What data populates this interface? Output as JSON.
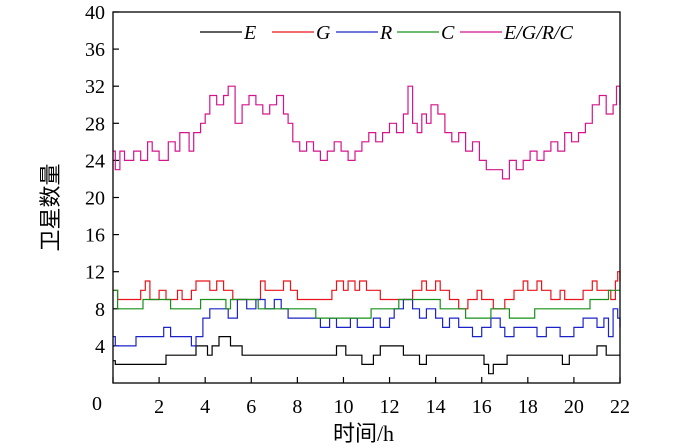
{
  "chart_data": {
    "type": "line",
    "title": "",
    "xlabel": "时间/h",
    "ylabel": "卫星数量",
    "xlim": [
      0,
      22
    ],
    "ylim": [
      0,
      40
    ],
    "xticks": [
      0,
      2,
      4,
      6,
      8,
      10,
      12,
      14,
      16,
      18,
      20,
      22
    ],
    "yticks": [
      4,
      8,
      12,
      16,
      20,
      24,
      28,
      32,
      36,
      40
    ],
    "y_zero_label": "0",
    "legend_position": "top",
    "series": [
      {
        "name": "E",
        "color": "#000000",
        "points": [
          [
            0,
            2.4
          ],
          [
            0.1,
            2
          ],
          [
            1,
            2
          ],
          [
            1.8,
            2
          ],
          [
            2.2,
            2
          ],
          [
            2.3,
            3
          ],
          [
            3,
            3
          ],
          [
            3.3,
            3
          ],
          [
            3.6,
            4
          ],
          [
            4,
            4
          ],
          [
            4.1,
            3
          ],
          [
            4.3,
            4
          ],
          [
            4.6,
            5
          ],
          [
            4.9,
            5
          ],
          [
            5.1,
            4
          ],
          [
            5.6,
            3
          ],
          [
            6,
            3
          ],
          [
            7,
            3
          ],
          [
            8,
            3
          ],
          [
            9,
            3
          ],
          [
            9.6,
            3
          ],
          [
            9.7,
            4
          ],
          [
            9.9,
            4
          ],
          [
            10.1,
            3
          ],
          [
            10.6,
            3
          ],
          [
            10.8,
            2
          ],
          [
            11,
            2
          ],
          [
            11.3,
            3
          ],
          [
            11.6,
            4
          ],
          [
            12.4,
            4
          ],
          [
            12.6,
            3
          ],
          [
            13.1,
            3
          ],
          [
            13.3,
            2
          ],
          [
            13.6,
            3
          ],
          [
            14,
            3
          ],
          [
            15,
            3
          ],
          [
            15.8,
            3
          ],
          [
            16,
            3
          ],
          [
            16.1,
            2
          ],
          [
            16.3,
            1
          ],
          [
            16.5,
            2
          ],
          [
            17,
            2
          ],
          [
            17.1,
            3
          ],
          [
            18,
            3
          ],
          [
            19.4,
            3
          ],
          [
            19.5,
            2
          ],
          [
            19.8,
            3
          ],
          [
            20,
            3
          ],
          [
            20.9,
            3
          ],
          [
            21,
            4
          ],
          [
            21.3,
            4
          ],
          [
            21.4,
            3
          ],
          [
            22,
            3
          ]
        ]
      },
      {
        "name": "G",
        "color": "#e8141b",
        "points": [
          [
            0,
            10
          ],
          [
            0.2,
            9
          ],
          [
            1,
            9
          ],
          [
            1.2,
            10
          ],
          [
            1.4,
            11
          ],
          [
            1.6,
            9
          ],
          [
            2,
            10
          ],
          [
            2.3,
            9
          ],
          [
            2.6,
            9
          ],
          [
            2.8,
            10
          ],
          [
            3,
            9
          ],
          [
            3.4,
            10
          ],
          [
            3.6,
            11
          ],
          [
            4,
            11
          ],
          [
            4.2,
            10
          ],
          [
            4.5,
            11
          ],
          [
            4.8,
            10
          ],
          [
            5.2,
            9
          ],
          [
            5.5,
            9
          ],
          [
            6,
            9
          ],
          [
            6.4,
            11
          ],
          [
            6.6,
            10
          ],
          [
            7,
            10
          ],
          [
            7.4,
            11
          ],
          [
            7.7,
            10
          ],
          [
            8,
            9
          ],
          [
            9,
            9
          ],
          [
            9.5,
            10
          ],
          [
            9.7,
            11
          ],
          [
            10,
            10
          ],
          [
            10.2,
            11
          ],
          [
            10.5,
            10
          ],
          [
            10.7,
            11
          ],
          [
            11,
            10
          ],
          [
            11.4,
            10
          ],
          [
            11.6,
            9
          ],
          [
            12,
            9
          ],
          [
            12.5,
            9
          ],
          [
            13,
            10
          ],
          [
            13.4,
            11
          ],
          [
            13.6,
            10
          ],
          [
            14,
            11
          ],
          [
            14.2,
            10
          ],
          [
            14.6,
            9
          ],
          [
            15,
            8
          ],
          [
            15.4,
            9
          ],
          [
            15.8,
            10
          ],
          [
            16,
            9
          ],
          [
            16.5,
            8
          ],
          [
            17,
            9
          ],
          [
            17.4,
            10
          ],
          [
            17.8,
            11
          ],
          [
            18,
            10
          ],
          [
            18.4,
            11
          ],
          [
            18.6,
            10
          ],
          [
            19,
            9
          ],
          [
            19.4,
            10
          ],
          [
            19.6,
            9
          ],
          [
            20,
            9
          ],
          [
            20.4,
            10
          ],
          [
            20.8,
            11
          ],
          [
            21,
            10
          ],
          [
            21.4,
            10
          ],
          [
            21.6,
            9
          ],
          [
            21.8,
            11
          ],
          [
            21.9,
            12
          ],
          [
            22,
            11
          ]
        ]
      },
      {
        "name": "R",
        "color": "#1c24c8",
        "points": [
          [
            0,
            5
          ],
          [
            0.1,
            4
          ],
          [
            0.8,
            4
          ],
          [
            1,
            5
          ],
          [
            2,
            5
          ],
          [
            2.2,
            6
          ],
          [
            2.5,
            5
          ],
          [
            3,
            5
          ],
          [
            3.4,
            4
          ],
          [
            3.6,
            5
          ],
          [
            3.9,
            7
          ],
          [
            4.2,
            8
          ],
          [
            4.6,
            8
          ],
          [
            5,
            7
          ],
          [
            5.4,
            9
          ],
          [
            5.8,
            8
          ],
          [
            6.2,
            9
          ],
          [
            6.6,
            8
          ],
          [
            7,
            9
          ],
          [
            7.3,
            8
          ],
          [
            7.6,
            7
          ],
          [
            8,
            7
          ],
          [
            8.6,
            7
          ],
          [
            9,
            6
          ],
          [
            9.4,
            7
          ],
          [
            9.7,
            6
          ],
          [
            10,
            6
          ],
          [
            10.3,
            7
          ],
          [
            10.6,
            6
          ],
          [
            11,
            6
          ],
          [
            11.3,
            7
          ],
          [
            11.6,
            6
          ],
          [
            12,
            7
          ],
          [
            12.2,
            8
          ],
          [
            12.6,
            9
          ],
          [
            13,
            8
          ],
          [
            13.3,
            7
          ],
          [
            13.6,
            8
          ],
          [
            14,
            7
          ],
          [
            14.3,
            6
          ],
          [
            14.6,
            7
          ],
          [
            15,
            6
          ],
          [
            15.4,
            6
          ],
          [
            15.6,
            5
          ],
          [
            16,
            6
          ],
          [
            16.4,
            7
          ],
          [
            16.8,
            6
          ],
          [
            17,
            5
          ],
          [
            17.4,
            6
          ],
          [
            18,
            6
          ],
          [
            18.4,
            5
          ],
          [
            18.8,
            6
          ],
          [
            19,
            6
          ],
          [
            19.4,
            5
          ],
          [
            20,
            6
          ],
          [
            20.4,
            7
          ],
          [
            20.8,
            7
          ],
          [
            21,
            6
          ],
          [
            21.3,
            7
          ],
          [
            21.5,
            5
          ],
          [
            21.7,
            8
          ],
          [
            21.9,
            7
          ],
          [
            22,
            6
          ]
        ]
      },
      {
        "name": "C",
        "color": "#17911a",
        "points": [
          [
            0,
            10
          ],
          [
            0.2,
            8
          ],
          [
            1,
            8
          ],
          [
            1.3,
            9
          ],
          [
            2.3,
            9
          ],
          [
            2.5,
            8
          ],
          [
            3.5,
            8
          ],
          [
            3.8,
            9
          ],
          [
            4.6,
            9
          ],
          [
            4.9,
            8
          ],
          [
            5.1,
            9
          ],
          [
            6,
            9
          ],
          [
            6.3,
            8
          ],
          [
            8.5,
            8
          ],
          [
            8.8,
            7
          ],
          [
            11,
            7
          ],
          [
            11.2,
            8
          ],
          [
            12,
            8
          ],
          [
            12.4,
            9
          ],
          [
            14,
            9
          ],
          [
            14.2,
            8
          ],
          [
            15,
            8
          ],
          [
            15.3,
            7
          ],
          [
            16.2,
            7
          ],
          [
            16.4,
            8
          ],
          [
            17,
            8
          ],
          [
            17.2,
            7
          ],
          [
            18,
            7
          ],
          [
            18.3,
            8
          ],
          [
            20.4,
            8
          ],
          [
            20.7,
            9
          ],
          [
            21.2,
            9
          ],
          [
            21.5,
            10
          ],
          [
            22,
            10
          ]
        ]
      },
      {
        "name": "E/G/R/C",
        "color": "#d4148c",
        "points": [
          [
            0,
            25
          ],
          [
            0.1,
            23
          ],
          [
            0.3,
            25
          ],
          [
            0.5,
            24
          ],
          [
            0.9,
            25
          ],
          [
            1.2,
            24
          ],
          [
            1.5,
            26
          ],
          [
            1.7,
            25
          ],
          [
            2,
            24
          ],
          [
            2.4,
            26
          ],
          [
            2.7,
            25
          ],
          [
            2.9,
            27
          ],
          [
            3.3,
            25
          ],
          [
            3.5,
            27
          ],
          [
            3.8,
            28
          ],
          [
            4,
            29
          ],
          [
            4.2,
            31
          ],
          [
            4.5,
            30
          ],
          [
            4.8,
            31
          ],
          [
            5,
            32
          ],
          [
            5.3,
            28
          ],
          [
            5.6,
            30
          ],
          [
            5.9,
            31
          ],
          [
            6.2,
            30
          ],
          [
            6.5,
            29
          ],
          [
            6.8,
            30
          ],
          [
            7.1,
            31
          ],
          [
            7.4,
            29
          ],
          [
            7.6,
            28
          ],
          [
            7.8,
            26
          ],
          [
            8.1,
            25
          ],
          [
            8.4,
            26
          ],
          [
            8.7,
            25
          ],
          [
            9,
            24
          ],
          [
            9.3,
            25
          ],
          [
            9.6,
            26
          ],
          [
            9.9,
            25
          ],
          [
            10.2,
            24
          ],
          [
            10.5,
            25
          ],
          [
            10.8,
            26
          ],
          [
            11.1,
            27
          ],
          [
            11.4,
            26
          ],
          [
            11.7,
            27
          ],
          [
            12,
            28
          ],
          [
            12.3,
            27
          ],
          [
            12.6,
            29
          ],
          [
            12.8,
            32
          ],
          [
            13,
            28
          ],
          [
            13.2,
            27
          ],
          [
            13.4,
            29
          ],
          [
            13.6,
            28
          ],
          [
            13.8,
            30
          ],
          [
            14.1,
            29
          ],
          [
            14.4,
            27
          ],
          [
            14.7,
            26
          ],
          [
            15,
            27
          ],
          [
            15.3,
            25
          ],
          [
            15.6,
            26
          ],
          [
            15.9,
            24
          ],
          [
            16.2,
            23
          ],
          [
            16.6,
            23
          ],
          [
            16.9,
            22
          ],
          [
            17.2,
            24
          ],
          [
            17.5,
            23
          ],
          [
            17.8,
            24
          ],
          [
            18.1,
            25
          ],
          [
            18.4,
            24
          ],
          [
            18.7,
            25
          ],
          [
            19,
            26
          ],
          [
            19.3,
            25
          ],
          [
            19.6,
            27
          ],
          [
            19.9,
            26
          ],
          [
            20.2,
            27
          ],
          [
            20.5,
            28
          ],
          [
            20.8,
            30
          ],
          [
            21.1,
            31
          ],
          [
            21.4,
            29
          ],
          [
            21.7,
            30
          ],
          [
            21.85,
            32
          ],
          [
            22,
            30
          ]
        ]
      }
    ]
  }
}
